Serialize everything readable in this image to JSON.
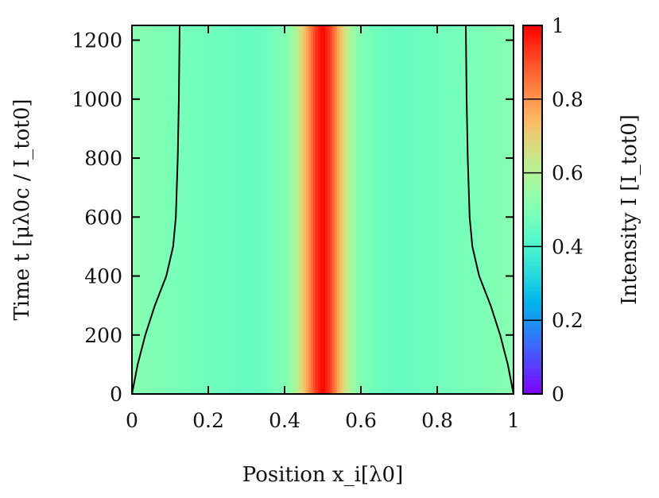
{
  "chart_data": {
    "type": "heatmap",
    "xlabel": "Position x_i[λ0]",
    "ylabel": "Time t [μλ0c / I_tot0]",
    "colorbar_label": "Intensity I [I_tot0]",
    "xlim": [
      0,
      1
    ],
    "ylim": [
      0,
      1250
    ],
    "clim": [
      0,
      1
    ],
    "colormap": "rainbow (purple-blue-cyan-green-orange-red)",
    "xticks": [
      "0",
      "0.2",
      "0.4",
      "0.6",
      "0.8",
      "1"
    ],
    "yticks": [
      "0",
      "200",
      "400",
      "600",
      "800",
      "1000",
      "1200"
    ],
    "cticks": [
      "0",
      "0.2",
      "0.4",
      "0.6",
      "0.8",
      "1"
    ],
    "intensity_profile": {
      "x": [
        0,
        0.05,
        0.1,
        0.2,
        0.3,
        0.35,
        0.4,
        0.42,
        0.44,
        0.46,
        0.48,
        0.5,
        0.52,
        0.54,
        0.56,
        0.58,
        0.6,
        0.65,
        0.7,
        0.8,
        0.9,
        0.95,
        1
      ],
      "intensity": [
        0.52,
        0.5,
        0.49,
        0.47,
        0.45,
        0.46,
        0.5,
        0.55,
        0.65,
        0.78,
        0.92,
        1.0,
        0.92,
        0.78,
        0.65,
        0.55,
        0.5,
        0.46,
        0.45,
        0.47,
        0.49,
        0.5,
        0.52
      ]
    },
    "boundary_curves": [
      {
        "t": [
          0,
          100,
          200,
          300,
          400,
          500,
          600,
          800,
          1000,
          1250
        ],
        "x": [
          0,
          0.015,
          0.035,
          0.06,
          0.09,
          0.108,
          0.115,
          0.12,
          0.123,
          0.125
        ]
      },
      {
        "t": [
          0,
          100,
          200,
          300,
          400,
          500,
          600,
          800,
          1000,
          1250
        ],
        "x": [
          1,
          0.985,
          0.965,
          0.94,
          0.91,
          0.892,
          0.885,
          0.88,
          0.877,
          0.875
        ]
      }
    ]
  }
}
